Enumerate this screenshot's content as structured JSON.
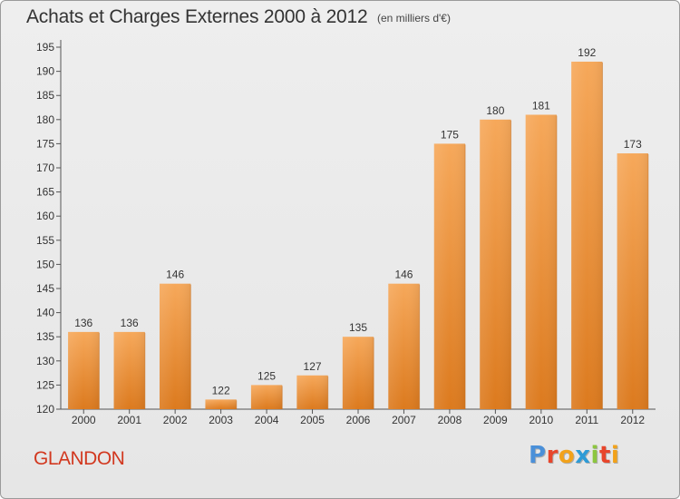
{
  "header": {
    "title": "Achats et Charges Externes 2000 à 2012",
    "unit": "(en milliers d'€)"
  },
  "footer": {
    "commune": "GLANDON",
    "logo_text": "Proxiti"
  },
  "colors": {
    "bar_top": "#f6a85a",
    "bar_bottom": "#dc7a1e",
    "commune": "#d2381f",
    "logo_letters": [
      "#4a90d9",
      "#e8452b",
      "#f2a21a",
      "#2e9bd6",
      "#8dc63f",
      "#e8452b",
      "#f2a21a"
    ]
  },
  "chart_data": {
    "type": "bar",
    "title": "Achats et Charges Externes 2000 à 2012",
    "subtitle": "(en milliers d'€)",
    "categories": [
      "2000",
      "2001",
      "2002",
      "2003",
      "2004",
      "2005",
      "2006",
      "2007",
      "2008",
      "2009",
      "2010",
      "2011",
      "2012"
    ],
    "values": [
      136,
      136,
      146,
      122,
      125,
      127,
      135,
      146,
      175,
      180,
      181,
      192,
      173
    ],
    "ylim": [
      120,
      195
    ],
    "yticks": [
      120,
      125,
      130,
      135,
      140,
      145,
      150,
      155,
      160,
      165,
      170,
      175,
      180,
      185,
      190,
      195
    ],
    "xlabel": "",
    "ylabel": "",
    "grid": false,
    "data_labels": true
  }
}
